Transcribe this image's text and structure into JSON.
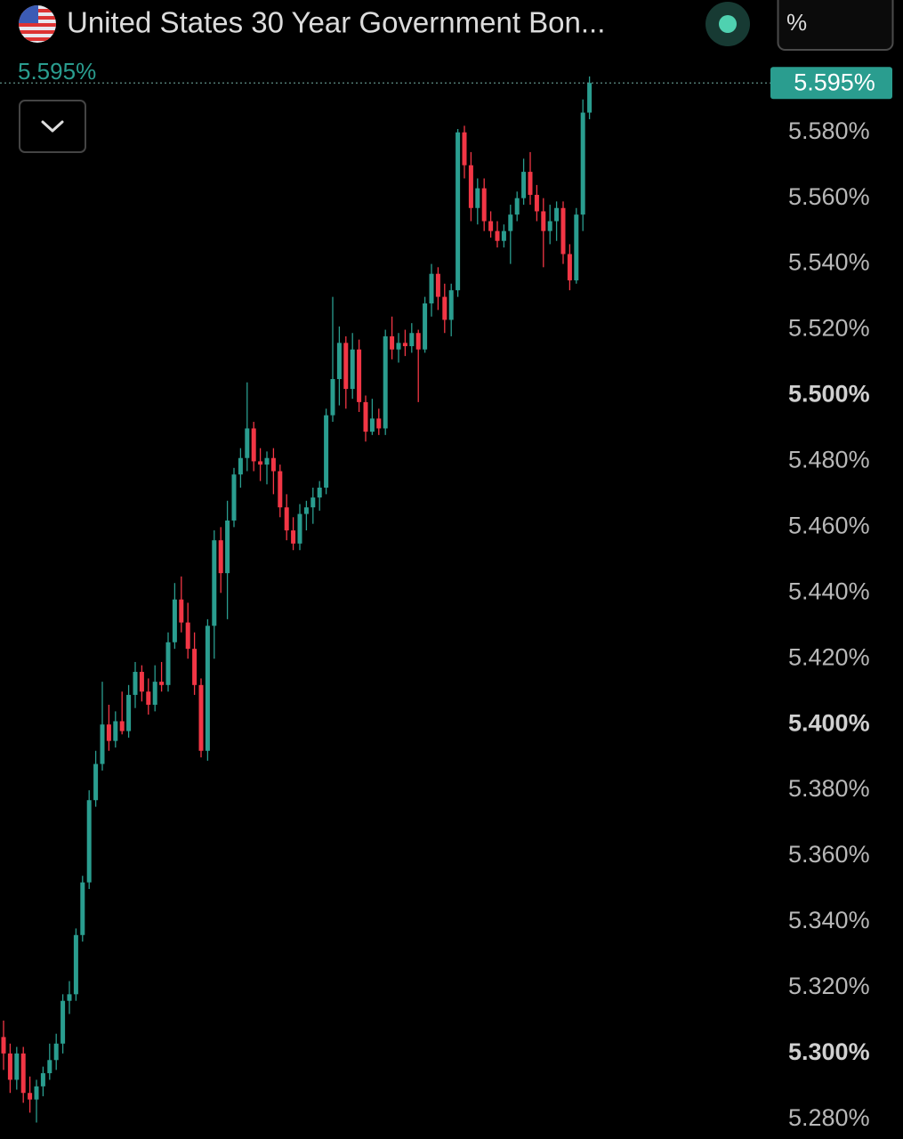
{
  "chart_data": {
    "type": "candlestick",
    "title": "United States 30 Year Government Bon...",
    "unit_button": "%",
    "last_price": 5.595,
    "last_price_label": "5.595%",
    "up_color": "#2a9d8f",
    "down_color": "#f23645",
    "ylim": [
      5.274,
      5.604
    ],
    "yticks": [
      {
        "value": 5.28,
        "label": "5.280%"
      },
      {
        "value": 5.3,
        "label": "5.300%"
      },
      {
        "value": 5.32,
        "label": "5.320%"
      },
      {
        "value": 5.34,
        "label": "5.340%"
      },
      {
        "value": 5.36,
        "label": "5.360%"
      },
      {
        "value": 5.38,
        "label": "5.380%"
      },
      {
        "value": 5.4,
        "label": "5.400%"
      },
      {
        "value": 5.42,
        "label": "5.420%"
      },
      {
        "value": 5.44,
        "label": "5.440%"
      },
      {
        "value": 5.46,
        "label": "5.460%"
      },
      {
        "value": 5.48,
        "label": "5.480%"
      },
      {
        "value": 5.5,
        "label": "5.500%"
      },
      {
        "value": 5.52,
        "label": "5.520%"
      },
      {
        "value": 5.54,
        "label": "5.540%"
      },
      {
        "value": 5.56,
        "label": "5.560%"
      },
      {
        "value": 5.58,
        "label": "5.580%"
      }
    ],
    "open": [
      5.305,
      5.3,
      5.292,
      5.3,
      5.288,
      5.286,
      5.29,
      5.294,
      5.298,
      5.303,
      5.316,
      5.318,
      5.336,
      5.352,
      5.377,
      5.388,
      5.4,
      5.395,
      5.401,
      5.398,
      5.409,
      5.416,
      5.41,
      5.406,
      5.413,
      5.412,
      5.425,
      5.438,
      5.431,
      5.423,
      5.412,
      5.392,
      5.43,
      5.456,
      5.446,
      5.462,
      5.476,
      5.481,
      5.49,
      5.48,
      5.479,
      5.481,
      5.477,
      5.466,
      5.459,
      5.455,
      5.464,
      5.466,
      5.469,
      5.472,
      5.494,
      5.505,
      5.516,
      5.502,
      5.514,
      5.498,
      5.489,
      5.493,
      5.49,
      5.518,
      5.514,
      5.516,
      5.515,
      5.519,
      5.514,
      5.528,
      5.537,
      5.53,
      5.523,
      5.532,
      5.58,
      5.57,
      5.557,
      5.563,
      5.553,
      5.55,
      5.547,
      5.55,
      5.555,
      5.56,
      5.568,
      5.561,
      5.556,
      5.55,
      5.553,
      5.557,
      5.543,
      5.535,
      5.555,
      5.586
    ],
    "high": [
      5.31,
      5.303,
      5.302,
      5.302,
      5.293,
      5.292,
      5.296,
      5.303,
      5.306,
      5.318,
      5.322,
      5.338,
      5.354,
      5.38,
      5.392,
      5.413,
      5.406,
      5.404,
      5.41,
      5.412,
      5.419,
      5.418,
      5.414,
      5.418,
      5.419,
      5.428,
      5.443,
      5.445,
      5.437,
      5.428,
      5.414,
      5.432,
      5.459,
      5.46,
      5.468,
      5.478,
      5.484,
      5.504,
      5.492,
      5.484,
      5.483,
      5.484,
      5.479,
      5.47,
      5.463,
      5.467,
      5.468,
      5.472,
      5.474,
      5.496,
      5.53,
      5.521,
      5.518,
      5.519,
      5.517,
      5.5,
      5.499,
      5.496,
      5.52,
      5.524,
      5.519,
      5.52,
      5.522,
      5.52,
      5.53,
      5.54,
      5.539,
      5.534,
      5.534,
      5.581,
      5.582,
      5.574,
      5.566,
      5.566,
      5.556,
      5.553,
      5.552,
      5.558,
      5.562,
      5.572,
      5.574,
      5.564,
      5.56,
      5.558,
      5.559,
      5.559,
      5.546,
      5.557,
      5.59,
      5.597
    ],
    "low": [
      5.295,
      5.288,
      5.289,
      5.285,
      5.282,
      5.279,
      5.287,
      5.292,
      5.295,
      5.3,
      5.312,
      5.316,
      5.334,
      5.35,
      5.375,
      5.386,
      5.392,
      5.393,
      5.397,
      5.396,
      5.405,
      5.407,
      5.403,
      5.404,
      5.41,
      5.41,
      5.423,
      5.428,
      5.42,
      5.409,
      5.39,
      5.389,
      5.42,
      5.44,
      5.432,
      5.46,
      5.472,
      5.477,
      5.477,
      5.474,
      5.473,
      5.47,
      5.463,
      5.456,
      5.453,
      5.453,
      5.459,
      5.461,
      5.465,
      5.47,
      5.492,
      5.497,
      5.496,
      5.499,
      5.495,
      5.486,
      5.488,
      5.488,
      5.488,
      5.511,
      5.51,
      5.512,
      5.513,
      5.498,
      5.513,
      5.524,
      5.526,
      5.519,
      5.518,
      5.53,
      5.566,
      5.553,
      5.552,
      5.55,
      5.548,
      5.545,
      5.545,
      5.54,
      5.553,
      5.558,
      5.558,
      5.553,
      5.539,
      5.546,
      5.547,
      5.54,
      5.532,
      5.534,
      5.55,
      5.584
    ],
    "close": [
      5.3,
      5.292,
      5.3,
      5.288,
      5.286,
      5.29,
      5.294,
      5.298,
      5.303,
      5.316,
      5.318,
      5.336,
      5.352,
      5.377,
      5.388,
      5.4,
      5.395,
      5.401,
      5.398,
      5.409,
      5.416,
      5.41,
      5.406,
      5.413,
      5.412,
      5.425,
      5.438,
      5.431,
      5.423,
      5.412,
      5.392,
      5.43,
      5.456,
      5.446,
      5.462,
      5.476,
      5.481,
      5.49,
      5.48,
      5.479,
      5.481,
      5.477,
      5.466,
      5.459,
      5.455,
      5.464,
      5.466,
      5.469,
      5.472,
      5.494,
      5.505,
      5.516,
      5.502,
      5.514,
      5.498,
      5.489,
      5.493,
      5.49,
      5.518,
      5.514,
      5.516,
      5.515,
      5.519,
      5.514,
      5.528,
      5.537,
      5.53,
      5.523,
      5.532,
      5.58,
      5.57,
      5.557,
      5.563,
      5.553,
      5.55,
      5.547,
      5.55,
      5.555,
      5.56,
      5.568,
      5.561,
      5.556,
      5.55,
      5.553,
      5.557,
      5.543,
      5.535,
      5.555,
      5.586,
      5.595
    ]
  }
}
